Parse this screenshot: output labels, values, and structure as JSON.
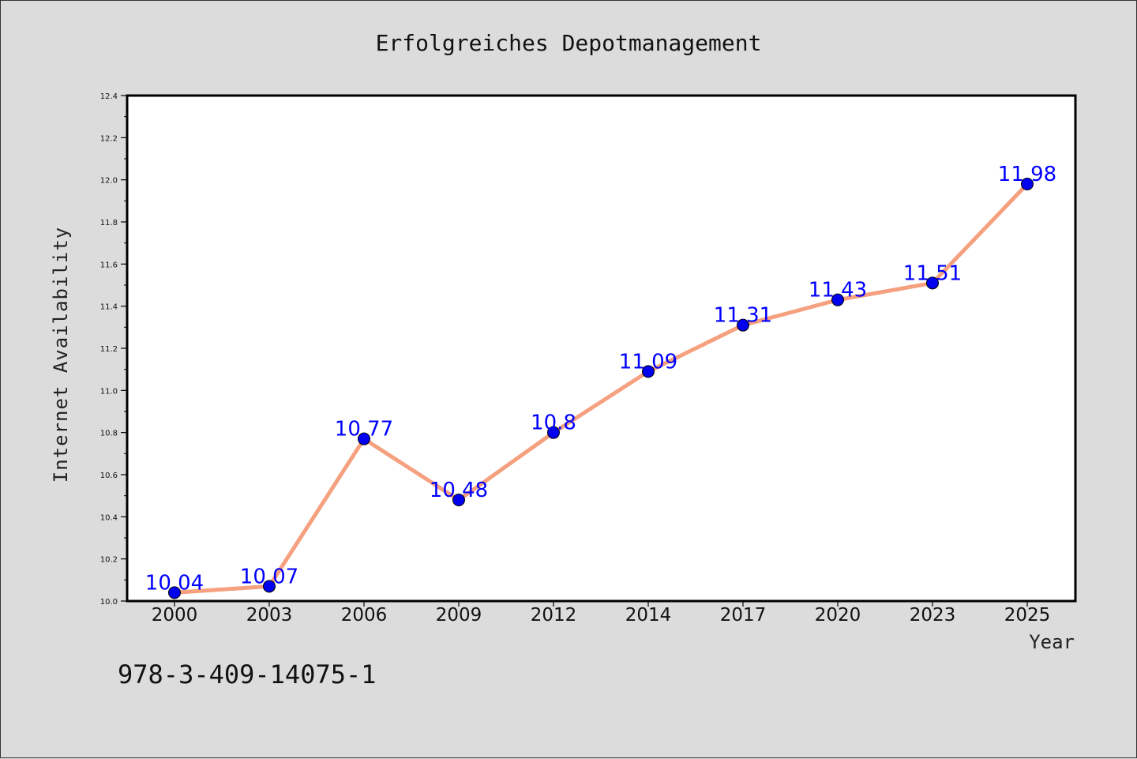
{
  "chart_data": {
    "type": "line",
    "title": "Erfolgreiches Depotmanagement",
    "xlabel": "Year",
    "ylabel": "Internet Availability",
    "categories": [
      "2000",
      "2003",
      "2006",
      "2009",
      "2012",
      "2014",
      "2017",
      "2020",
      "2023",
      "2025"
    ],
    "series": [
      {
        "values": [
          10.04,
          10.07,
          10.77,
          10.48,
          10.8,
          11.09,
          11.31,
          11.43,
          11.51,
          11.98
        ],
        "labels": [
          "10.04",
          "10.07",
          "10.77",
          "10.48",
          "10.8",
          "11.09",
          "11.31",
          "11.43",
          "11.51",
          "11.98"
        ],
        "line_color": "#f5a07e",
        "marker_color": "#0000ee"
      }
    ],
    "ylim": [
      10.0,
      12.4
    ],
    "yticks": [
      "10.0",
      "10.2",
      "10.4",
      "10.6",
      "10.8",
      "11.0",
      "11.2",
      "11.4",
      "11.6",
      "11.8",
      "12.0",
      "12.2",
      "12.4"
    ],
    "grid": false,
    "legend": "none"
  },
  "footer": {
    "isbn": "978-3-409-14075-1"
  }
}
